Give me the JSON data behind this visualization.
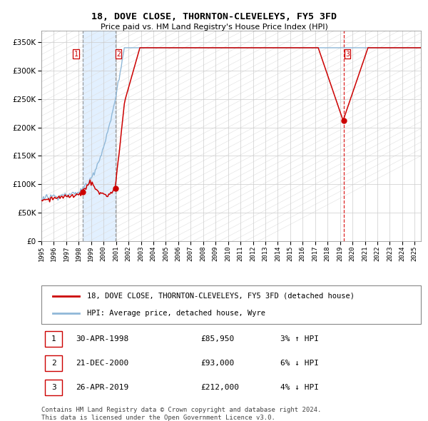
{
  "title1": "18, DOVE CLOSE, THORNTON-CLEVELEYS, FY5 3FD",
  "title2": "Price paid vs. HM Land Registry's House Price Index (HPI)",
  "legend_line1": "18, DOVE CLOSE, THORNTON-CLEVELEYS, FY5 3FD (detached house)",
  "legend_line2": "HPI: Average price, detached house, Wyre",
  "transactions": [
    {
      "num": 1,
      "date": "30-APR-1998",
      "price": 85950,
      "pct": "3%",
      "dir": "↑",
      "year_x": 1998.33
    },
    {
      "num": 2,
      "date": "21-DEC-2000",
      "price": 93000,
      "pct": "6%",
      "dir": "↓",
      "year_x": 2000.97
    },
    {
      "num": 3,
      "date": "26-APR-2019",
      "price": 212000,
      "pct": "4%",
      "dir": "↓",
      "year_x": 2019.33
    }
  ],
  "sale_marker_color": "#cc0000",
  "hpi_line_color": "#90b8d8",
  "price_line_color": "#cc0000",
  "shade_color": "#ddeeff",
  "ylim": [
    0,
    370000
  ],
  "yticks": [
    0,
    50000,
    100000,
    150000,
    200000,
    250000,
    300000,
    350000
  ],
  "xlim_start": 1995.0,
  "xlim_end": 2025.5,
  "footer1": "Contains HM Land Registry data © Crown copyright and database right 2024.",
  "footer2": "This data is licensed under the Open Government Licence v3.0."
}
